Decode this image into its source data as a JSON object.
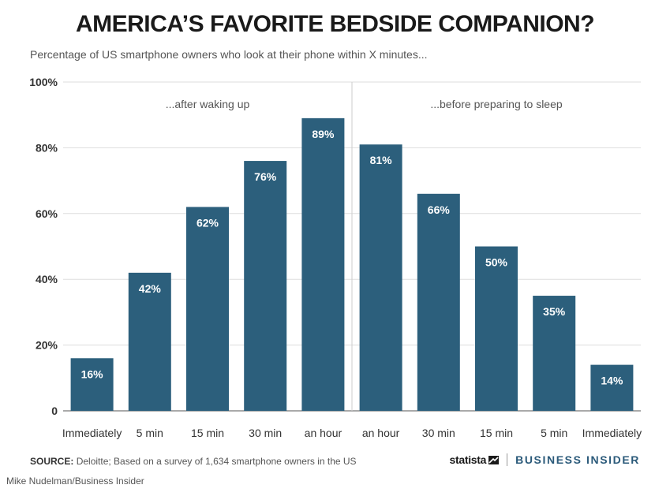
{
  "title": "AMERICA’S FAVORITE BEDSIDE COMPANION?",
  "subtitle": "Percentage of US smartphone owners who look at their phone within X minutes...",
  "source_label": "SOURCE:",
  "source_text": "Deloitte; Based on a survey of 1,634 smartphone owners in the US",
  "brand_statista": "statista",
  "brand_business_insider": "BUSINESS INSIDER",
  "credit": "Mike Nudelman/Business Insider",
  "colors": {
    "bar": "#2c5f7c",
    "bar_label": "#ffffff",
    "grid": "#dddddd",
    "axis_text": "#333333"
  },
  "chart_data": {
    "type": "bar",
    "categories": [
      "Immediately",
      "5 min",
      "15 min",
      "30 min",
      "an hour",
      "an hour",
      "30 min",
      "15 min",
      "5 min",
      "Immediately"
    ],
    "values": [
      16,
      42,
      62,
      76,
      89,
      81,
      66,
      50,
      35,
      14
    ],
    "value_labels": [
      "16%",
      "42%",
      "62%",
      "76%",
      "89%",
      "81%",
      "66%",
      "50%",
      "35%",
      "14%"
    ],
    "ylim": [
      0,
      100
    ],
    "yticks": [
      0,
      20,
      40,
      60,
      80,
      100
    ],
    "ytick_labels": [
      "0",
      "20%",
      "40%",
      "60%",
      "80%",
      "100%"
    ],
    "grid": true,
    "groups": [
      {
        "label": "...after waking up",
        "start": 0,
        "end": 4
      },
      {
        "label": "...before preparing to sleep",
        "start": 5,
        "end": 9
      }
    ]
  }
}
